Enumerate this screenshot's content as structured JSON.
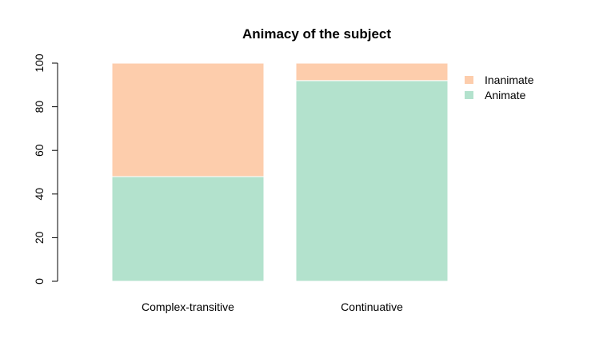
{
  "chart_data": {
    "type": "bar",
    "stacked": true,
    "title": "Animacy of the subject",
    "xlabel": "",
    "ylabel": "",
    "categories": [
      "Complex-transitive",
      "Continuative"
    ],
    "series": [
      {
        "name": "Animate",
        "values": [
          48,
          92
        ],
        "color": "#B3E2CD"
      },
      {
        "name": "Inanimate",
        "values": [
          52,
          8
        ],
        "color": "#FDCDAC"
      }
    ],
    "ylim": [
      0,
      100
    ],
    "yticks": [
      "0",
      "20",
      "40",
      "60",
      "80",
      "100"
    ],
    "legend": {
      "position": "top-right",
      "items": [
        {
          "label": "Inanimate",
          "color": "#FDCDAC"
        },
        {
          "label": "Animate",
          "color": "#B3E2CD"
        }
      ]
    },
    "grid": false
  }
}
